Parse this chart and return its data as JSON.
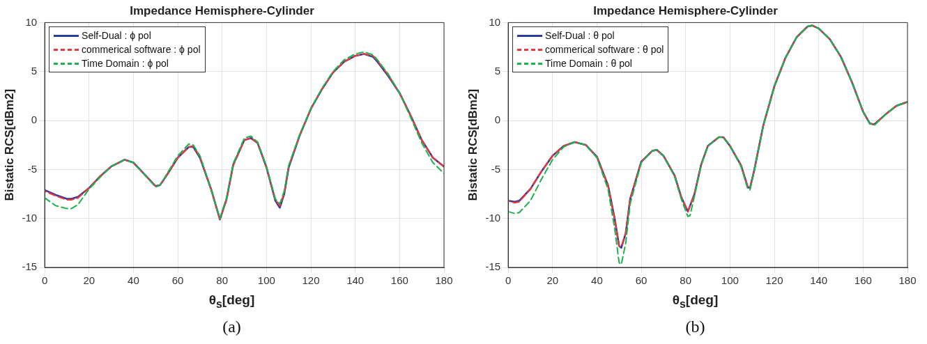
{
  "chart_data": [
    {
      "type": "line",
      "title": "Impedance Hemisphere-Cylinder",
      "xlabel": "θ$_{s}$[deg]",
      "ylabel": "Bistatic RCS[dBm2]",
      "annotations": [
        "(a)"
      ],
      "xlim": [
        0,
        180
      ],
      "xticks": [
        0,
        20,
        40,
        60,
        80,
        100,
        120,
        140,
        160,
        180
      ],
      "ylim": [
        -15,
        10
      ],
      "yticks": [
        -15,
        -10,
        -5,
        0,
        5,
        10
      ],
      "grid": true,
      "legend": "top left",
      "marker": "none",
      "series": [
        {
          "name": "Self-Dual : ϕ pol",
          "color": "#2b3a9e",
          "line_style": "solid",
          "x": [
            0,
            5,
            10,
            12,
            15,
            20,
            25,
            30,
            36,
            40,
            45,
            50,
            52,
            55,
            60,
            65,
            67,
            70,
            75,
            79,
            82,
            85,
            90,
            93,
            96,
            100,
            104,
            106,
            108,
            110,
            115,
            120,
            125,
            130,
            135,
            140,
            144,
            148,
            150,
            155,
            160,
            165,
            170,
            175,
            180
          ],
          "values": [
            -7.1,
            -7.6,
            -8.0,
            -8.0,
            -7.8,
            -6.9,
            -5.7,
            -4.7,
            -4.0,
            -4.3,
            -5.5,
            -6.7,
            -6.6,
            -5.6,
            -3.8,
            -2.7,
            -2.7,
            -3.8,
            -7.0,
            -10.1,
            -8.0,
            -4.5,
            -2.0,
            -1.8,
            -2.3,
            -4.8,
            -8.2,
            -8.9,
            -7.5,
            -4.8,
            -1.5,
            1.2,
            3.2,
            4.9,
            6.0,
            6.6,
            6.8,
            6.5,
            6.0,
            4.5,
            2.8,
            0.5,
            -2.0,
            -3.8,
            -4.7
          ]
        },
        {
          "name": "commerical software : ϕ pol",
          "color": "#e8383d",
          "line_style": "dashed",
          "x": [
            0,
            5,
            10,
            12,
            15,
            20,
            25,
            30,
            36,
            40,
            45,
            50,
            52,
            55,
            60,
            65,
            67,
            70,
            75,
            79,
            82,
            85,
            90,
            93,
            96,
            100,
            104,
            106,
            108,
            110,
            115,
            120,
            125,
            130,
            135,
            140,
            144,
            148,
            150,
            155,
            160,
            165,
            170,
            175,
            180
          ],
          "values": [
            -7.2,
            -7.7,
            -8.1,
            -8.1,
            -7.9,
            -6.9,
            -5.7,
            -4.7,
            -4.0,
            -4.3,
            -5.5,
            -6.7,
            -6.6,
            -5.6,
            -3.8,
            -2.7,
            -2.6,
            -3.7,
            -7.0,
            -10.1,
            -8.1,
            -4.6,
            -2.0,
            -1.8,
            -2.3,
            -4.8,
            -8.1,
            -8.7,
            -7.4,
            -4.7,
            -1.5,
            1.2,
            3.2,
            4.9,
            6.0,
            6.6,
            6.8,
            6.6,
            6.1,
            4.6,
            2.8,
            0.5,
            -2.0,
            -3.8,
            -4.7
          ]
        },
        {
          "name": "Time Domain : ϕ pol",
          "color": "#1db34a",
          "line_style": "dashed",
          "x": [
            0,
            5,
            10,
            12,
            15,
            20,
            25,
            30,
            36,
            40,
            45,
            50,
            52,
            55,
            60,
            65,
            67,
            70,
            75,
            79,
            82,
            85,
            90,
            93,
            96,
            100,
            104,
            106,
            108,
            110,
            115,
            120,
            125,
            130,
            135,
            140,
            144,
            148,
            150,
            155,
            160,
            165,
            170,
            175,
            180
          ],
          "values": [
            -7.9,
            -8.7,
            -9.0,
            -9.0,
            -8.6,
            -7.0,
            -5.8,
            -4.7,
            -4.0,
            -4.3,
            -5.5,
            -6.8,
            -6.6,
            -5.5,
            -3.6,
            -2.4,
            -2.5,
            -3.6,
            -7.0,
            -10.0,
            -7.9,
            -4.4,
            -1.8,
            -1.6,
            -2.2,
            -4.7,
            -8.0,
            -8.5,
            -7.2,
            -4.6,
            -1.4,
            1.2,
            3.3,
            5.0,
            6.2,
            6.8,
            7.0,
            6.7,
            6.2,
            4.7,
            2.8,
            0.3,
            -2.3,
            -4.3,
            -5.4
          ]
        }
      ]
    },
    {
      "type": "line",
      "title": "Impedance Hemisphere-Cylinder",
      "xlabel": "θ$_{s}$[deg]",
      "ylabel": "Bistatic RCS[dBm2]",
      "annotations": [
        "(b)"
      ],
      "xlim": [
        0,
        180
      ],
      "xticks": [
        0,
        20,
        40,
        60,
        80,
        100,
        120,
        140,
        160,
        180
      ],
      "ylim": [
        -15,
        10
      ],
      "yticks": [
        -15,
        -10,
        -5,
        0,
        5,
        10
      ],
      "grid": true,
      "legend": "top left",
      "marker": "none",
      "series": [
        {
          "name": "Self-Dual : θ pol",
          "color": "#2b3a9e",
          "line_style": "solid",
          "x": [
            0,
            3,
            5,
            10,
            15,
            20,
            25,
            30,
            35,
            40,
            45,
            48,
            50,
            51,
            53,
            55,
            60,
            65,
            67,
            70,
            75,
            78,
            81,
            84,
            87,
            90,
            95,
            97,
            100,
            105,
            108,
            109,
            111,
            115,
            120,
            125,
            130,
            135,
            137,
            140,
            145,
            150,
            155,
            160,
            163,
            165,
            170,
            175,
            180
          ],
          "values": [
            -8.2,
            -8.3,
            -8.2,
            -7.0,
            -5.2,
            -3.6,
            -2.6,
            -2.2,
            -2.5,
            -3.7,
            -6.6,
            -10.0,
            -12.8,
            -13.0,
            -11.5,
            -8.0,
            -4.2,
            -3.1,
            -3.0,
            -3.6,
            -5.6,
            -7.8,
            -9.3,
            -7.5,
            -4.5,
            -2.6,
            -1.7,
            -1.7,
            -2.6,
            -4.6,
            -6.8,
            -6.9,
            -5.0,
            -0.5,
            3.5,
            6.4,
            8.5,
            9.6,
            9.7,
            9.4,
            8.3,
            6.5,
            3.9,
            0.9,
            -0.3,
            -0.4,
            0.6,
            1.5,
            1.9
          ]
        },
        {
          "name": "commerical software : θ pol",
          "color": "#e8383d",
          "line_style": "dashed",
          "x": [
            0,
            3,
            5,
            10,
            15,
            20,
            25,
            30,
            35,
            40,
            45,
            48,
            50,
            51,
            53,
            55,
            60,
            65,
            67,
            70,
            75,
            78,
            81,
            84,
            87,
            90,
            95,
            97,
            100,
            105,
            108,
            109,
            111,
            115,
            120,
            125,
            130,
            135,
            137,
            140,
            145,
            150,
            155,
            160,
            163,
            165,
            170,
            175,
            180
          ],
          "values": [
            -8.2,
            -8.4,
            -8.3,
            -7.0,
            -5.2,
            -3.6,
            -2.6,
            -2.2,
            -2.5,
            -3.7,
            -6.6,
            -10.0,
            -12.8,
            -12.9,
            -11.5,
            -8.0,
            -4.2,
            -3.1,
            -3.0,
            -3.6,
            -5.6,
            -7.8,
            -9.3,
            -7.5,
            -4.5,
            -2.6,
            -1.7,
            -1.7,
            -2.6,
            -4.6,
            -6.8,
            -6.9,
            -5.0,
            -0.5,
            3.5,
            6.4,
            8.5,
            9.6,
            9.7,
            9.4,
            8.3,
            6.5,
            3.9,
            0.9,
            -0.3,
            -0.4,
            0.6,
            1.5,
            1.9
          ]
        },
        {
          "name": "Time Domain : θ pol",
          "color": "#1db34a",
          "line_style": "dashed",
          "x": [
            0,
            3,
            5,
            10,
            15,
            20,
            25,
            30,
            35,
            40,
            45,
            48,
            50,
            51,
            53,
            55,
            60,
            65,
            67,
            70,
            75,
            78,
            81,
            82,
            84,
            87,
            90,
            95,
            97,
            100,
            105,
            108,
            109,
            111,
            115,
            120,
            125,
            130,
            135,
            137,
            140,
            145,
            150,
            155,
            160,
            163,
            165,
            170,
            175,
            180
          ],
          "values": [
            -9.3,
            -9.5,
            -9.4,
            -8.2,
            -6.0,
            -4.0,
            -2.7,
            -2.2,
            -2.5,
            -3.8,
            -7.0,
            -11.0,
            -14.5,
            -14.7,
            -12.5,
            -8.5,
            -4.3,
            -3.1,
            -3.0,
            -3.6,
            -5.7,
            -8.0,
            -9.8,
            -9.7,
            -7.7,
            -4.6,
            -2.6,
            -1.7,
            -1.7,
            -2.6,
            -4.7,
            -7.0,
            -7.1,
            -5.1,
            -0.5,
            3.5,
            6.4,
            8.5,
            9.6,
            9.7,
            9.4,
            8.3,
            6.5,
            3.9,
            0.9,
            -0.3,
            -0.5,
            0.6,
            1.5,
            1.9
          ]
        }
      ]
    }
  ]
}
